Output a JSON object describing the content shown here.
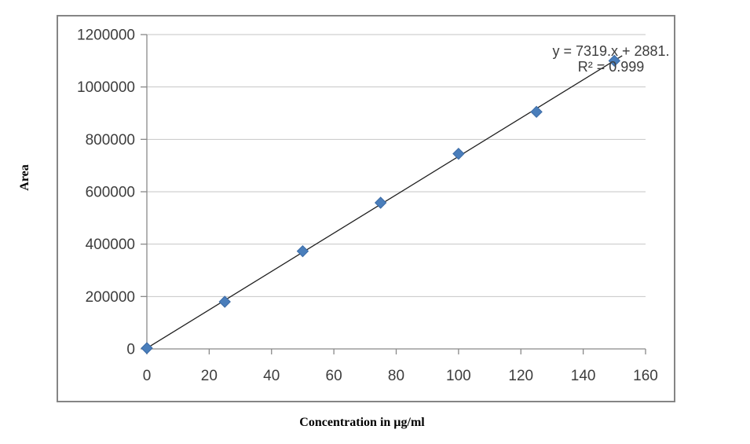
{
  "chart_data": {
    "type": "scatter",
    "title": "",
    "xlabel": "Concentration in µg/ml",
    "ylabel": "Area",
    "points": [
      {
        "x": 0,
        "y": 2881
      },
      {
        "x": 25,
        "y": 180000
      },
      {
        "x": 50,
        "y": 373000
      },
      {
        "x": 75,
        "y": 558000
      },
      {
        "x": 100,
        "y": 745000
      },
      {
        "x": 125,
        "y": 905000
      },
      {
        "x": 150,
        "y": 1100000
      }
    ],
    "trendline": {
      "slope": 7319,
      "intercept": 2881,
      "equation_label": "y = 7319.x + 2881.",
      "r_squared_label": "R² = 0.999",
      "r_squared": 0.999
    },
    "xlim": [
      0,
      160
    ],
    "ylim": [
      0,
      1200000
    ],
    "x_ticks": [
      0,
      20,
      40,
      60,
      80,
      100,
      120,
      140,
      160
    ],
    "y_ticks": [
      0,
      200000,
      400000,
      600000,
      800000,
      1000000,
      1200000
    ],
    "grid": "horizontal-major",
    "legend": "none",
    "marker": "diamond",
    "colors": {
      "marker_fill": "#4a7ebb",
      "marker_stroke": "#3a6aa5",
      "trendline": "#1f1f1f",
      "gridline": "#c6c6c6",
      "axis": "#898989",
      "tick_label": "#3d3d3d",
      "frame_border": "#858585"
    }
  }
}
